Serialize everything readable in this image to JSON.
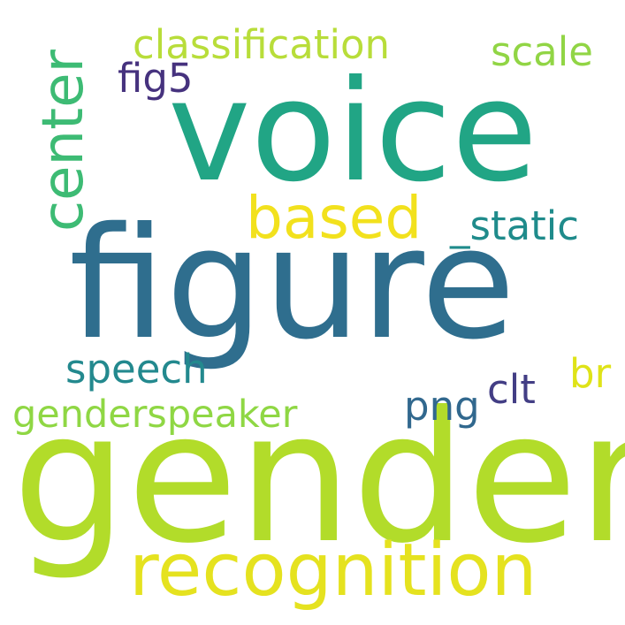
{
  "words": {
    "voice": {
      "text": "voice",
      "color": "#21a585"
    },
    "figure": {
      "text": "figure",
      "color": "#2f6e8e"
    },
    "gender": {
      "text": "gender",
      "color": "#b2dc2a"
    },
    "recognition": {
      "text": "recognition",
      "color": "#e5e21f"
    },
    "based": {
      "text": "based",
      "color": "#f2e11d"
    },
    "center": {
      "text": "center",
      "color": "#3dbb74"
    },
    "classification": {
      "text": "classification",
      "color": "#b8dd3a"
    },
    "scale": {
      "text": "scale",
      "color": "#91d545"
    },
    "fig5": {
      "text": "fig5",
      "color": "#46327e"
    },
    "static": {
      "text": "_static",
      "color": "#1f8b8b"
    },
    "speech": {
      "text": "speech",
      "color": "#23898e"
    },
    "genderspeaker": {
      "text": "genderspeaker",
      "color": "#8fd744"
    },
    "png": {
      "text": "png",
      "color": "#31688e"
    },
    "clt": {
      "text": "clt",
      "color": "#433e85"
    },
    "br": {
      "text": "br",
      "color": "#dfe318"
    }
  }
}
